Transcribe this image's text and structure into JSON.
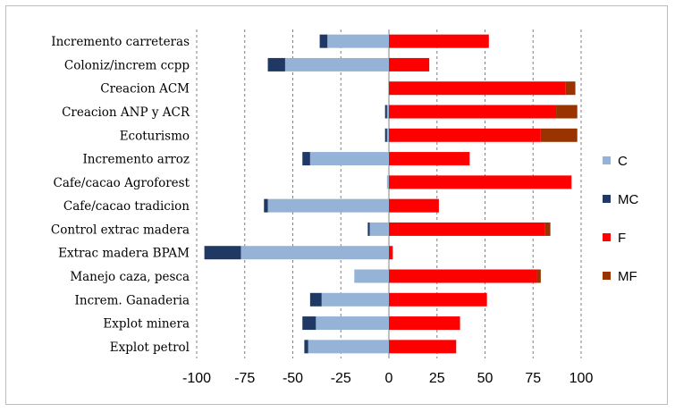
{
  "chart_data": {
    "type": "bar",
    "orientation": "horizontal",
    "stacked": true,
    "categories": [
      "Incremento carreteras",
      "Coloniz/increm ccpp",
      "Creacion ACM",
      "Creacion ANP y ACR",
      "Ecoturismo",
      "Incremento arroz",
      "Cafe/cacao Agroforest",
      "Cafe/cacao tradicion",
      "Control extrac madera",
      "Extrac madera BPAM",
      "Manejo caza, pesca",
      "Increm. Ganaderia",
      "Explot minera",
      "Explot petrol"
    ],
    "series": [
      {
        "name": "C",
        "color": "#95b3d7",
        "values": [
          -32,
          -54,
          0,
          -1,
          -1,
          -41,
          -1,
          -63,
          -10,
          -77,
          -18,
          -35,
          -38,
          -42
        ]
      },
      {
        "name": "MC",
        "color": "#1f3864",
        "values": [
          -4,
          -9,
          0,
          -1,
          -1,
          -4,
          0,
          -2,
          -1,
          -19,
          0,
          -6,
          -7,
          -2
        ]
      },
      {
        "name": "F",
        "color": "#ff0000",
        "values": [
          52,
          21,
          92,
          87,
          79,
          42,
          95,
          26,
          81,
          2,
          77,
          51,
          37,
          35
        ]
      },
      {
        "name": "MF",
        "color": "#993300",
        "values": [
          0,
          0,
          5,
          11,
          19,
          0,
          0,
          0,
          3,
          0,
          2,
          0,
          0,
          0
        ]
      }
    ],
    "xlim": [
      -100,
      100
    ],
    "xticks": [
      -100,
      -75,
      -50,
      -25,
      0,
      25,
      50,
      75,
      100
    ],
    "xtick_labels": [
      "-100",
      "-75",
      "-50",
      "-25",
      "0",
      "25",
      "50",
      "75",
      "100"
    ],
    "grid": "vertical dashed",
    "legend_position": "right",
    "legend": [
      "C",
      "MC",
      "F",
      "MF"
    ]
  }
}
